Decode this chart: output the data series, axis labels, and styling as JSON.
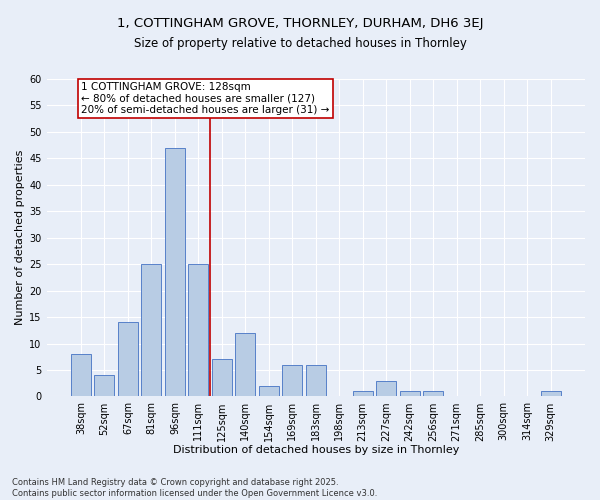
{
  "title1": "1, COTTINGHAM GROVE, THORNLEY, DURHAM, DH6 3EJ",
  "title2": "Size of property relative to detached houses in Thornley",
  "xlabel": "Distribution of detached houses by size in Thornley",
  "ylabel": "Number of detached properties",
  "categories": [
    "38sqm",
    "52sqm",
    "67sqm",
    "81sqm",
    "96sqm",
    "111sqm",
    "125sqm",
    "140sqm",
    "154sqm",
    "169sqm",
    "183sqm",
    "198sqm",
    "213sqm",
    "227sqm",
    "242sqm",
    "256sqm",
    "271sqm",
    "285sqm",
    "300sqm",
    "314sqm",
    "329sqm"
  ],
  "values": [
    8,
    4,
    14,
    25,
    47,
    25,
    7,
    12,
    2,
    6,
    6,
    0,
    1,
    3,
    1,
    1,
    0,
    0,
    0,
    0,
    1
  ],
  "bar_color": "#b8cce4",
  "bar_edge_color": "#4472c4",
  "background_color": "#e8eef8",
  "grid_color": "#ffffff",
  "vline_x_idx": 6,
  "vline_color": "#c00000",
  "annotation_title": "1 COTTINGHAM GROVE: 128sqm",
  "annotation_line1": "← 80% of detached houses are smaller (127)",
  "annotation_line2": "20% of semi-detached houses are larger (31) →",
  "annotation_box_color": "#ffffff",
  "annotation_border_color": "#c00000",
  "ylim": [
    0,
    60
  ],
  "yticks": [
    0,
    5,
    10,
    15,
    20,
    25,
    30,
    35,
    40,
    45,
    50,
    55,
    60
  ],
  "footer": "Contains HM Land Registry data © Crown copyright and database right 2025.\nContains public sector information licensed under the Open Government Licence v3.0.",
  "title1_fontsize": 9.5,
  "title2_fontsize": 8.5,
  "xlabel_fontsize": 8,
  "ylabel_fontsize": 8,
  "tick_fontsize": 7,
  "annotation_fontsize": 7.5,
  "footer_fontsize": 6
}
